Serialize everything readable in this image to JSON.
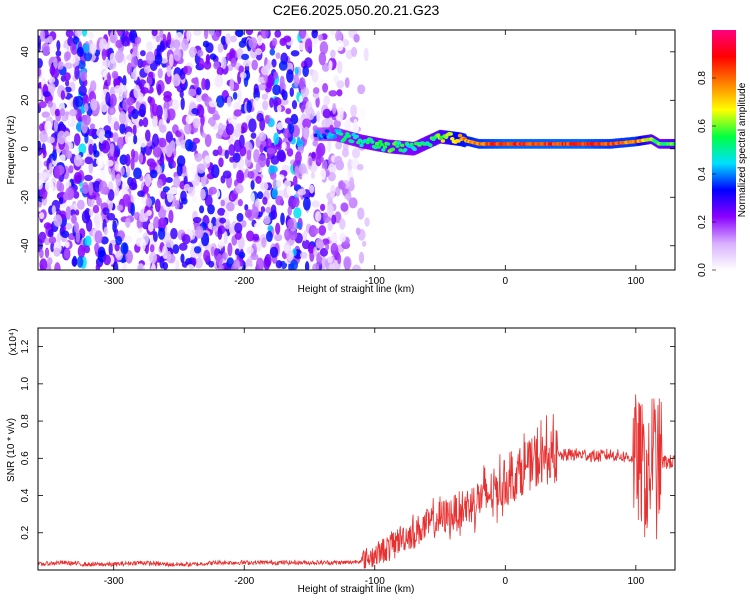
{
  "title": "C2E6.2025.050.20.21.G23",
  "chart_data": [
    {
      "type": "heatmap",
      "xlabel": "Height of straight line (km)",
      "ylabel": "Frequency (Hz)",
      "xlim": [
        -358,
        130
      ],
      "ylim": [
        -50,
        49
      ],
      "xticks": [
        -300,
        -200,
        -100,
        0,
        100
      ],
      "yticks": [
        -40,
        -20,
        0,
        20,
        40
      ],
      "colorbar": {
        "label": "Normalized spectral amplitude",
        "range": [
          0.0,
          1.0
        ],
        "ticks": [
          "0.0",
          "0.2",
          "0.4",
          "0.6",
          "0.8"
        ],
        "colormap": [
          "#ffffff",
          "#d8b0ff",
          "#8a00ff",
          "#0000ff",
          "#00e0ff",
          "#00ff40",
          "#ffff00",
          "#ff8000",
          "#ff0000",
          "#ff0080"
        ]
      },
      "noise_region_x": [
        -358,
        -105
      ],
      "ridge": {
        "x": [
          -145,
          -130,
          -110,
          -90,
          -70,
          -50,
          -35,
          -20,
          0,
          30,
          60,
          80,
          100,
          112,
          118,
          130
        ],
        "freq": [
          6,
          6,
          3,
          1,
          0,
          5,
          4,
          2,
          2,
          2,
          2,
          2,
          3,
          4,
          2,
          2
        ],
        "amplitude": [
          0.35,
          0.45,
          0.5,
          0.55,
          0.5,
          0.6,
          0.75,
          0.8,
          0.85,
          0.85,
          0.85,
          0.8,
          0.8,
          0.6,
          0.55,
          0.6
        ]
      }
    },
    {
      "type": "line",
      "xlabel": "Height of straight line (km)",
      "ylabel": "SNR (10 * v/v)",
      "y_multiplier": "(x10⁴)",
      "xlim": [
        -358,
        130
      ],
      "ylim": [
        0,
        1.3
      ],
      "xticks": [
        -300,
        -200,
        -100,
        0,
        100
      ],
      "yticks": [
        0.2,
        0.4,
        0.6,
        0.8,
        1.0,
        1.2
      ],
      "color": "#e83030",
      "series": [
        {
          "x": [
            -358,
            -340,
            -320,
            -300,
            -280,
            -260,
            -240,
            -220,
            -200,
            -180,
            -160,
            -140,
            -120,
            -110,
            -100,
            -90,
            -80,
            -70,
            -60,
            -50,
            -40,
            -30,
            -20,
            -10,
            0,
            10,
            20,
            30,
            40,
            50,
            60,
            70,
            80,
            90,
            100,
            105,
            110,
            113,
            116,
            118,
            120,
            125,
            130
          ],
          "y": [
            0.03,
            0.04,
            0.03,
            0.03,
            0.04,
            0.03,
            0.03,
            0.04,
            0.04,
            0.04,
            0.04,
            0.04,
            0.04,
            0.05,
            0.08,
            0.12,
            0.17,
            0.2,
            0.24,
            0.28,
            0.3,
            0.34,
            0.38,
            0.42,
            0.47,
            0.52,
            0.57,
            0.6,
            0.61,
            0.62,
            0.62,
            0.61,
            0.62,
            0.61,
            0.6,
            0.55,
            0.45,
            0.7,
            0.5,
            0.6,
            0.58,
            0.58,
            0.58
          ]
        }
      ]
    }
  ]
}
